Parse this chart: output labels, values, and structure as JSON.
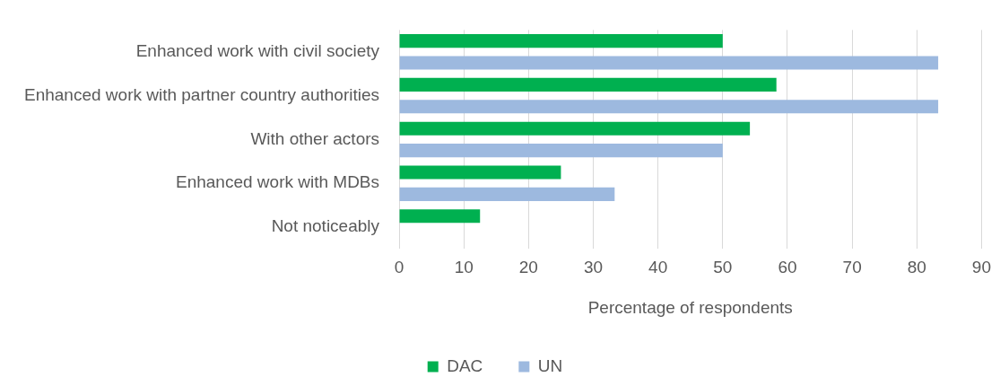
{
  "chart_data": {
    "type": "bar",
    "orientation": "horizontal",
    "xlabel": "Percentage of respondents",
    "categories": [
      "Enhanced work with civil society",
      "Enhanced work with partner country authorities",
      "With other actors",
      "Enhanced work with MDBs",
      "Not noticeably"
    ],
    "series": [
      {
        "name": "DAC",
        "color": "#00b050",
        "values": [
          50,
          58.3,
          54.2,
          25,
          12.5
        ]
      },
      {
        "name": "UN",
        "color": "#9db9df",
        "values": [
          83.3,
          83.3,
          50,
          33.3,
          0
        ]
      }
    ],
    "xlim": [
      0,
      90
    ],
    "xticks": [
      0,
      10,
      20,
      30,
      40,
      50,
      60,
      70,
      80,
      90
    ],
    "grid": "x",
    "legend": "bottom"
  }
}
